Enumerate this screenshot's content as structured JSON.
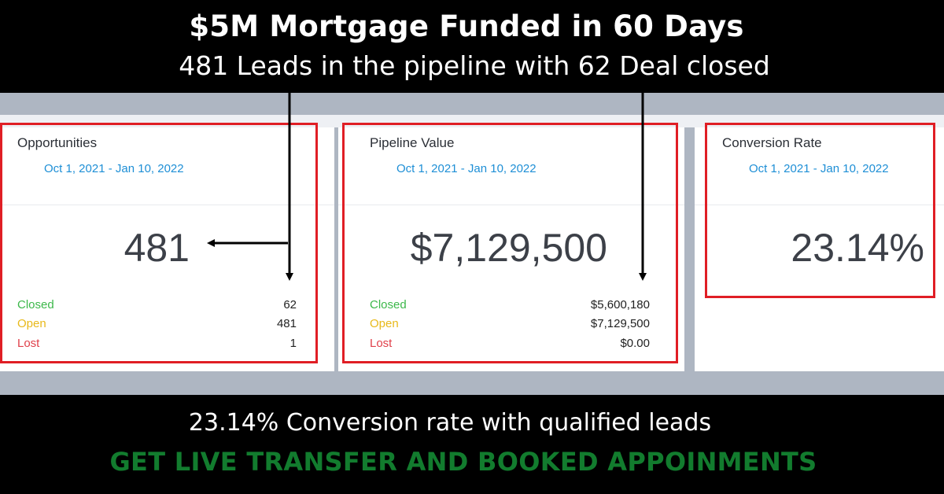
{
  "banner": {
    "headline": "$5M Mortgage Funded in 60 Days",
    "subheadline": "481 Leads in the pipeline with 62 Deal closed"
  },
  "cards": [
    {
      "title": "Opportunities",
      "date_range": "Oct 1, 2021 - Jan 10, 2022",
      "value": "481",
      "stats": [
        {
          "label": "Closed",
          "value": "62"
        },
        {
          "label": "Open",
          "value": "481"
        },
        {
          "label": "Lost",
          "value": "1"
        }
      ]
    },
    {
      "title": "Pipeline Value",
      "date_range": "Oct 1, 2021 - Jan 10, 2022",
      "value": "$7,129,500",
      "stats": [
        {
          "label": "Closed",
          "value": "$5,600,180"
        },
        {
          "label": "Open",
          "value": "$7,129,500"
        },
        {
          "label": "Lost",
          "value": "$0.00"
        }
      ]
    },
    {
      "title": "Conversion Rate",
      "date_range": "Oct 1, 2021 - Jan 10, 2022",
      "value": "23.14%"
    }
  ],
  "footer": {
    "text": "23.14% Conversion rate with qualified leads",
    "cta": "GET LIVE TRANSFER AND BOOKED APPOINMENTS"
  },
  "colors": {
    "highlight_box": "#e01e25",
    "cta": "#127c2e",
    "date_link": "#1e8fd6",
    "closed": "#3cb84a",
    "open": "#e8b91a",
    "lost": "#e0404a"
  }
}
